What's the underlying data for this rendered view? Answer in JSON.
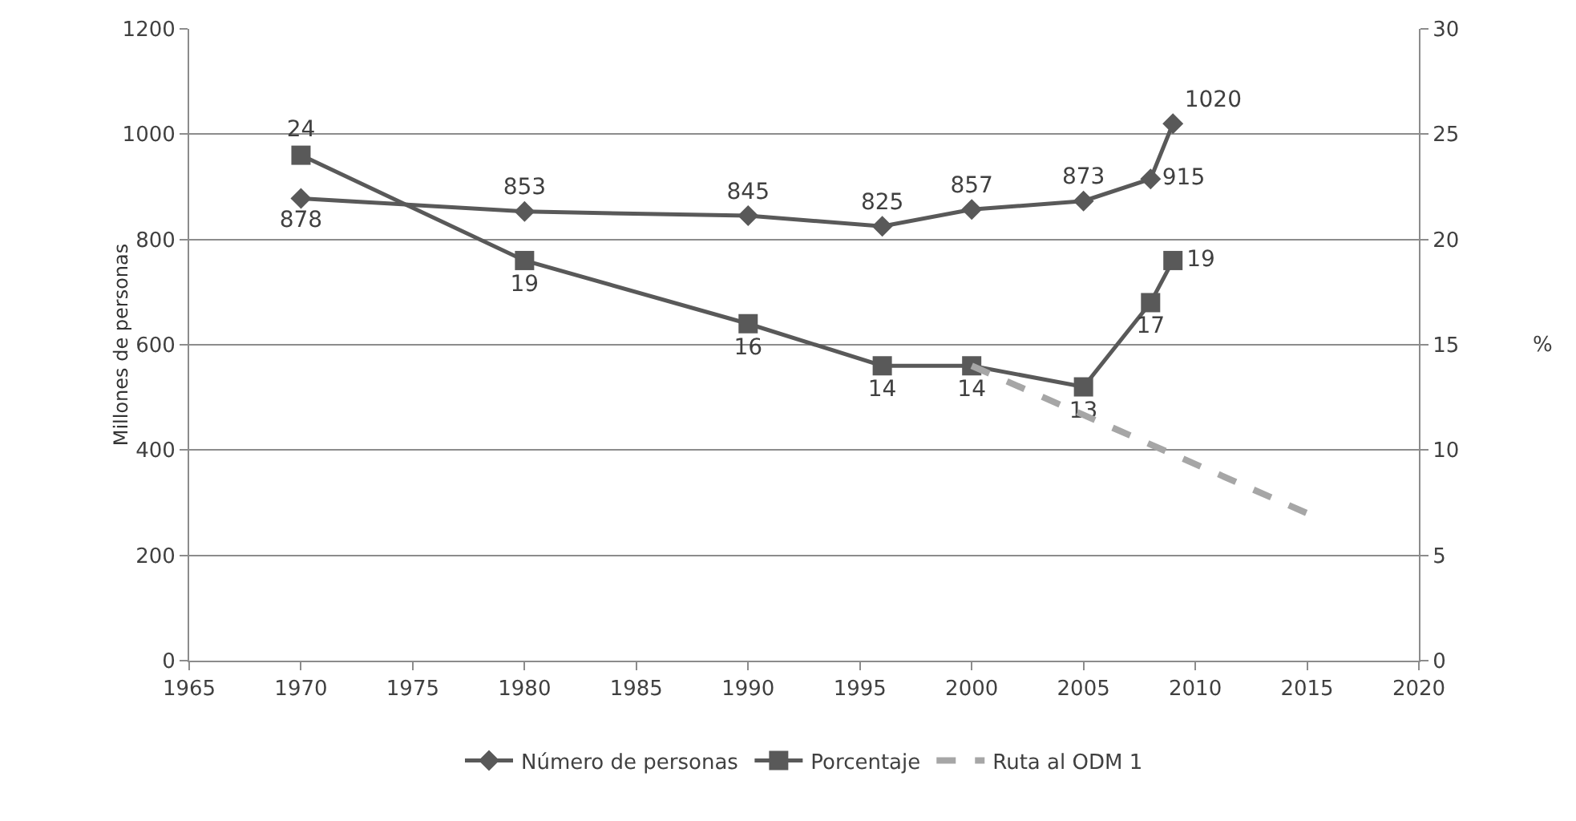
{
  "chart_data": {
    "type": "line",
    "ylabel": "Millones de personas",
    "y2label": "%",
    "xlim": [
      1965,
      2020
    ],
    "xticks": [
      1965,
      1970,
      1975,
      1980,
      1985,
      1990,
      1995,
      2000,
      2005,
      2010,
      2015,
      2020
    ],
    "ylim": [
      0,
      1200
    ],
    "yticks": [
      0,
      200,
      400,
      600,
      800,
      1000,
      1200
    ],
    "y2lim": [
      0,
      30
    ],
    "y2ticks": [
      0,
      5,
      10,
      15,
      20,
      25,
      30
    ],
    "grid": "y",
    "legend": "bottom",
    "series": [
      {
        "name": "Número de personas",
        "color": "#595959",
        "marker": "diamond",
        "line_style": "solid",
        "x": [
          1970,
          1980,
          1990,
          1996,
          2000,
          2005,
          2008,
          2009
        ],
        "values": [
          878,
          853,
          845,
          825,
          857,
          873,
          915,
          1020
        ],
        "value_labels": [
          "878",
          "853",
          "845",
          "825",
          "857",
          "873",
          "915",
          "1020"
        ]
      },
      {
        "name": "Porcentaje",
        "color": "#595959",
        "marker": "square",
        "line_style": "solid",
        "axis": "y2",
        "x": [
          1970,
          1980,
          1990,
          1996,
          2000,
          2005,
          2008,
          2009
        ],
        "values": [
          24,
          19,
          16,
          14,
          14,
          13,
          17,
          19
        ],
        "value_labels": [
          "24",
          "19",
          "16",
          "14",
          "14",
          "13",
          "17",
          "19"
        ]
      },
      {
        "name": "Ruta al ODM 1",
        "color": "#a6a6a6",
        "marker": "none",
        "line_style": "dashed",
        "axis": "y2",
        "x": [
          2000,
          2015
        ],
        "values": [
          14,
          7
        ]
      }
    ]
  }
}
